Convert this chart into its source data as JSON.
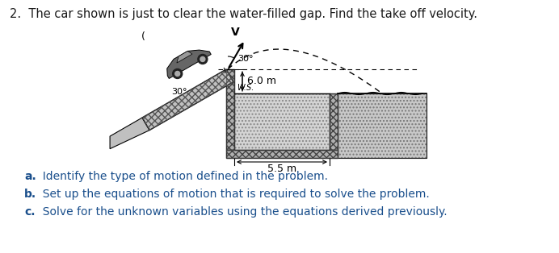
{
  "title": "2.  The car shown is just to clear the water-filled gap. Find the take off velocity.",
  "title_color": "#1a1a1a",
  "title_fontsize": 10.5,
  "bg_color": "#ffffff",
  "questions": [
    "a.   Identify the type of motion defined in the problem.",
    "b.  Set up the equations of motion that is required to solve the problem.",
    "c.   Solve for the unknown variables using the equations derived previously."
  ],
  "question_color": "#1a4f8c",
  "question_fontsize": 10.0,
  "diagram": {
    "height_label": "6.0 m",
    "width_label": "5.5 m",
    "ws_label": "W.S.",
    "velocity_label": "V",
    "launch_angle_label": "30°",
    "ramp_angle_label": "30°"
  }
}
